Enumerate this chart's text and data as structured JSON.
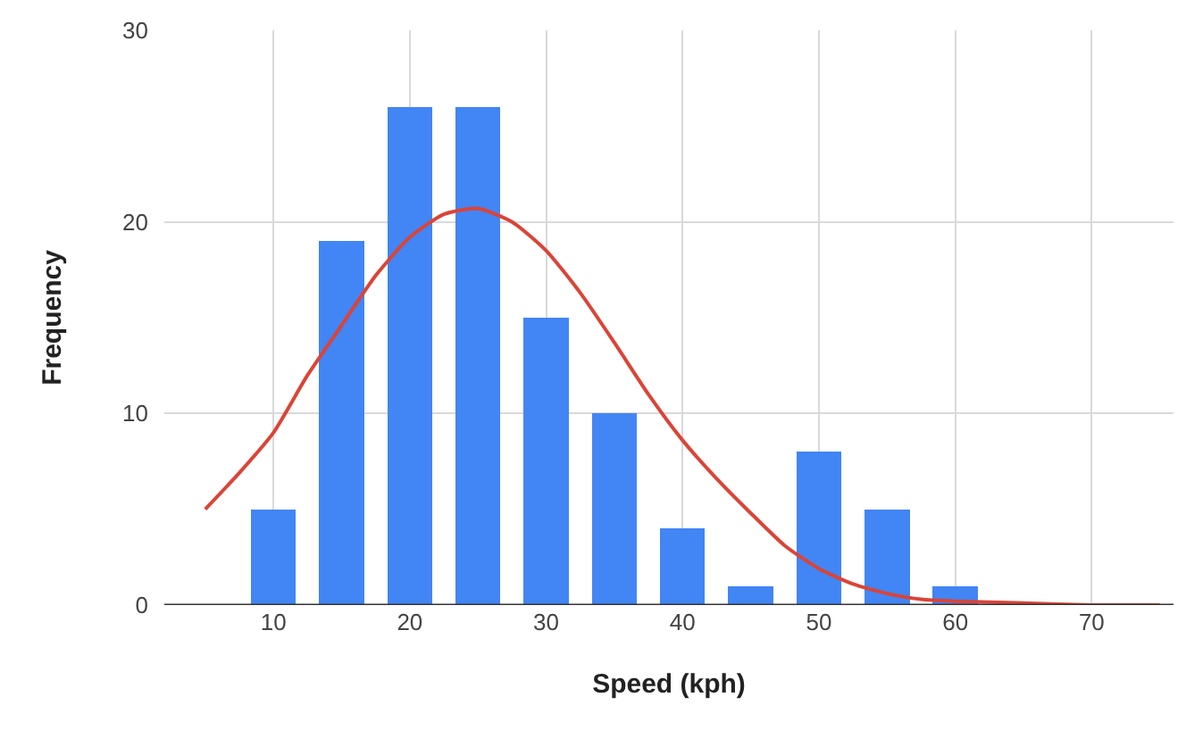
{
  "chart_data": {
    "type": "bar",
    "xlabel": "Speed (kph)",
    "ylabel": "Frequency",
    "x": [
      10,
      15,
      20,
      25,
      30,
      35,
      40,
      45,
      50,
      55,
      60
    ],
    "series": [
      {
        "color": "#4285f4",
        "values": [
          5,
          19,
          26,
          26,
          15,
          10,
          4,
          1,
          8,
          5,
          1
        ]
      },
      {
        "type": "line",
        "color": "#db4437",
        "x": [
          5,
          7.5,
          10,
          12.5,
          15,
          17.5,
          20,
          22.5,
          25,
          27.5,
          30,
          32.5,
          35,
          37.5,
          40,
          42.5,
          45,
          47.5,
          50,
          52.5,
          55,
          57.5,
          60,
          65,
          70,
          75
        ],
        "values": [
          5.0,
          6.9,
          9.0,
          12.0,
          14.6,
          17.2,
          19.2,
          20.4,
          20.7,
          20.0,
          18.5,
          16.3,
          13.7,
          11.0,
          8.6,
          6.6,
          4.8,
          3.1,
          1.9,
          1.1,
          0.6,
          0.3,
          0.2,
          0.1,
          0,
          0
        ]
      }
    ],
    "xlim": [
      2,
      76
    ],
    "xticks": [
      10,
      20,
      30,
      40,
      50,
      60,
      70
    ],
    "ylim": [
      0,
      30
    ],
    "yticks": [
      0,
      10,
      20,
      30
    ],
    "grid": true,
    "line_style": "solid",
    "marker": "none"
  }
}
